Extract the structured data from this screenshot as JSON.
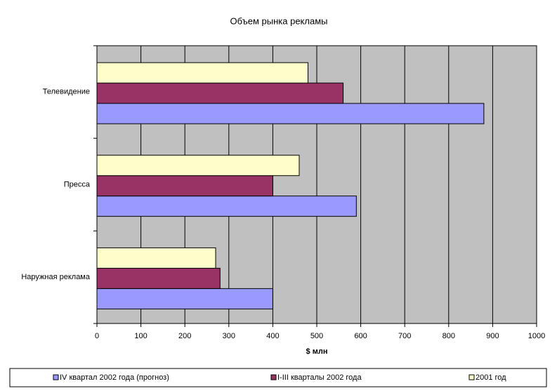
{
  "chart_data": {
    "type": "hbar",
    "title": "Объем рынка рекламы",
    "x_label": "$ млн",
    "categories": [
      "Телевидение",
      "Пресса",
      "Наружная реклама"
    ],
    "series": [
      {
        "name": "IV квартал 2002 года (прогноз)",
        "color": "#9999ff",
        "values": [
          880,
          590,
          400
        ]
      },
      {
        "name": "I-III кварталы 2002 года",
        "color": "#993366",
        "values": [
          560,
          400,
          280
        ]
      },
      {
        "name": "2001 год",
        "color": "#ffffcc",
        "values": [
          480,
          460,
          270
        ]
      }
    ],
    "xlim": [
      0,
      1000
    ],
    "xticks": [
      0,
      100,
      200,
      300,
      400,
      500,
      600,
      700,
      800,
      900,
      1000
    ],
    "grid": true,
    "legend": "bottom"
  }
}
